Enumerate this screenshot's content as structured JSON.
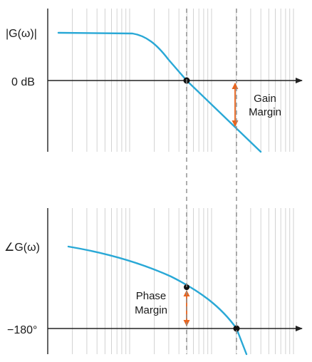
{
  "magnitude_plot": {
    "ylabel": "|G(ω)|",
    "ref_label": "0 dB"
  },
  "phase_plot": {
    "ylabel": "∠G(ω)",
    "ref_label": "−180°"
  },
  "annotations": {
    "gain_margin": {
      "line1": "Gain",
      "line2": "Margin"
    },
    "phase_margin": {
      "line1": "Phase",
      "line2": "Margin"
    }
  },
  "colors": {
    "curve": "#29a8d6",
    "margin_arrow": "#e8641e",
    "dashed": "#8c8c8c",
    "grid": "#d2d2d2",
    "axis": "#222222",
    "marker": "#111111"
  }
}
